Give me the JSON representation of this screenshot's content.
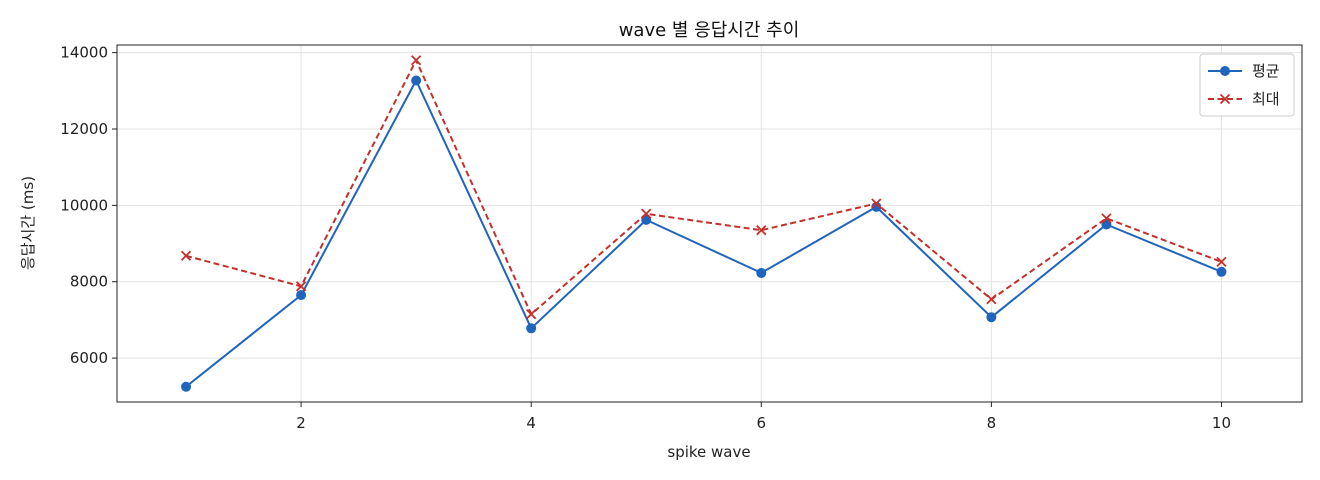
{
  "chart_data": {
    "type": "line",
    "title": "wave 별 응답시간 추이",
    "xlabel": "spike wave",
    "ylabel": "응답시간 (ms)",
    "x": [
      1,
      2,
      3,
      4,
      5,
      6,
      7,
      8,
      9,
      10
    ],
    "xlim": [
      0.4,
      10.7
    ],
    "ylim": [
      4850,
      14200
    ],
    "xticks": [
      2,
      4,
      6,
      8,
      10
    ],
    "yticks": [
      6000,
      8000,
      10000,
      12000,
      14000
    ],
    "grid": true,
    "legend_position": "top-right",
    "series": [
      {
        "name": "평균",
        "color": "#1f64bd",
        "line_style": "solid",
        "marker": "circle",
        "values": [
          5250,
          7650,
          13270,
          6780,
          9620,
          8230,
          9960,
          7070,
          9500,
          8260
        ]
      },
      {
        "name": "최대",
        "color": "#c4302b",
        "line_style": "dashed",
        "marker": "x",
        "values": [
          8680,
          7880,
          13800,
          7150,
          9780,
          9350,
          10050,
          7540,
          9660,
          8520
        ]
      }
    ]
  }
}
